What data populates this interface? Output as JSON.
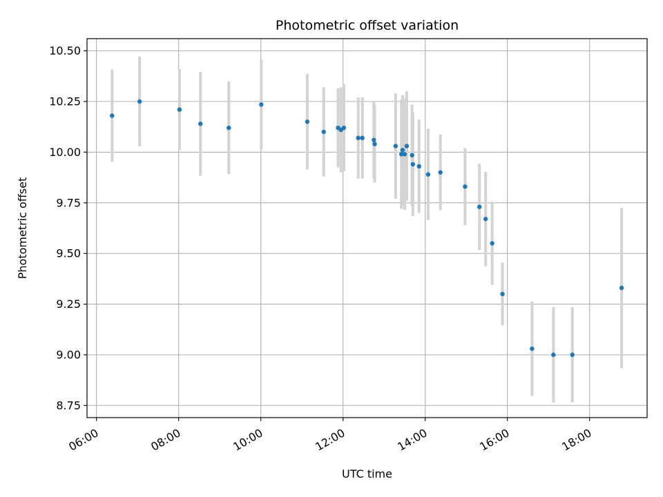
{
  "chart_data": {
    "type": "scatter",
    "title": "Photometric offset variation",
    "xlabel": "UTC time",
    "ylabel": "Photometric offset",
    "x_tick_labels": [
      "06:00",
      "08:00",
      "10:00",
      "12:00",
      "14:00",
      "16:00",
      "18:00"
    ],
    "y_tick_labels": [
      "8.75",
      "9.00",
      "9.25",
      "9.50",
      "9.75",
      "10.00",
      "10.25",
      "10.50"
    ],
    "x_ticks_hours": [
      6,
      8,
      10,
      12,
      14,
      16,
      18
    ],
    "y_ticks": [
      8.75,
      9.0,
      9.25,
      9.5,
      9.75,
      10.0,
      10.25,
      10.5
    ],
    "xlim_hours": [
      5.77,
      19.4
    ],
    "ylim": [
      8.69,
      10.56
    ],
    "grid": true,
    "colors": {
      "points": "#1f77b4",
      "errorbars": "#d3d3d3",
      "grid": "#b0b0b0"
    },
    "series": [
      {
        "points": [
          {
            "x": 6.38,
            "y": 10.18,
            "err": 0.227
          },
          {
            "x": 7.05,
            "y": 10.25,
            "err": 0.222
          },
          {
            "x": 8.02,
            "y": 10.21,
            "err": 0.2
          },
          {
            "x": 8.53,
            "y": 10.14,
            "err": 0.257
          },
          {
            "x": 9.22,
            "y": 10.12,
            "err": 0.229
          },
          {
            "x": 10.01,
            "y": 10.235,
            "err": 0.222
          },
          {
            "x": 11.13,
            "y": 10.15,
            "err": 0.235
          },
          {
            "x": 11.53,
            "y": 10.1,
            "err": 0.22
          },
          {
            "x": 11.88,
            "y": 10.12,
            "err": 0.195
          },
          {
            "x": 11.95,
            "y": 10.11,
            "err": 0.21
          },
          {
            "x": 12.02,
            "y": 10.12,
            "err": 0.215
          },
          {
            "x": 12.37,
            "y": 10.07,
            "err": 0.2
          },
          {
            "x": 12.47,
            "y": 10.07,
            "err": 0.2
          },
          {
            "x": 12.75,
            "y": 10.06,
            "err": 0.19
          },
          {
            "x": 12.77,
            "y": 10.04,
            "err": 0.19
          },
          {
            "x": 13.28,
            "y": 10.03,
            "err": 0.26
          },
          {
            "x": 13.42,
            "y": 9.99,
            "err": 0.27
          },
          {
            "x": 13.45,
            "y": 10.01,
            "err": 0.27
          },
          {
            "x": 13.5,
            "y": 9.99,
            "err": 0.275
          },
          {
            "x": 13.55,
            "y": 10.03,
            "err": 0.27
          },
          {
            "x": 13.68,
            "y": 9.985,
            "err": 0.25
          },
          {
            "x": 13.7,
            "y": 9.94,
            "err": 0.255
          },
          {
            "x": 13.85,
            "y": 9.93,
            "err": 0.23
          },
          {
            "x": 14.07,
            "y": 9.89,
            "err": 0.225
          },
          {
            "x": 14.37,
            "y": 9.9,
            "err": 0.187
          },
          {
            "x": 14.97,
            "y": 9.83,
            "err": 0.19
          },
          {
            "x": 15.32,
            "y": 9.73,
            "err": 0.213
          },
          {
            "x": 15.47,
            "y": 9.67,
            "err": 0.233
          },
          {
            "x": 15.63,
            "y": 9.55,
            "err": 0.205
          },
          {
            "x": 15.88,
            "y": 9.3,
            "err": 0.155
          },
          {
            "x": 16.6,
            "y": 9.03,
            "err": 0.233
          },
          {
            "x": 17.12,
            "y": 9.0,
            "err": 0.235
          },
          {
            "x": 17.58,
            "y": 9.0,
            "err": 0.235
          },
          {
            "x": 18.78,
            "y": 9.33,
            "err": 0.395
          }
        ]
      }
    ]
  }
}
